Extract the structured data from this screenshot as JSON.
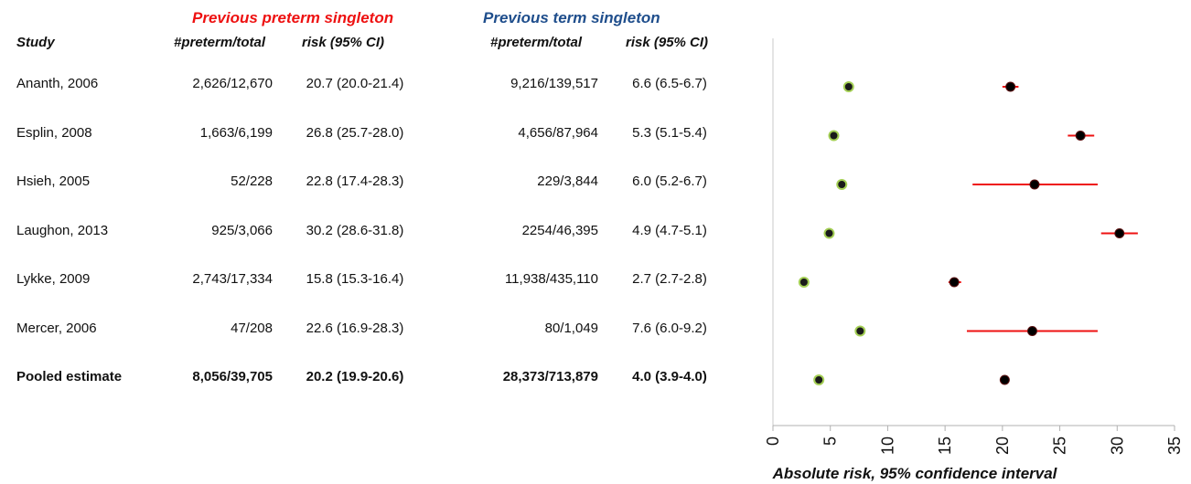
{
  "groups": {
    "preterm": {
      "label": "Previous preterm singleton",
      "color": "#ee1111"
    },
    "term": {
      "label": "Previous term singleton",
      "color": "#1f4e8c"
    }
  },
  "headers": {
    "study": "Study",
    "preterm_count": "#preterm/total",
    "preterm_risk": "risk (95% CI)",
    "term_count": "#preterm/total",
    "term_risk": "risk (95% CI)"
  },
  "rows": [
    {
      "study": "Ananth, 2006",
      "pre_n": "2,626/12,670",
      "pre_risk": "20.7 (20.0-21.4)",
      "term_n": "9,216/139,517",
      "term_risk": "6.6 (6.5-6.7)"
    },
    {
      "study": "Esplin, 2008",
      "pre_n": "1,663/6,199",
      "pre_risk": "26.8 (25.7-28.0)",
      "term_n": "4,656/87,964",
      "term_risk": "5.3 (5.1-5.4)"
    },
    {
      "study": "Hsieh, 2005",
      "pre_n": "52/228",
      "pre_risk": "22.8 (17.4-28.3)",
      "term_n": "229/3,844",
      "term_risk": "6.0 (5.2-6.7)"
    },
    {
      "study": "Laughon, 2013",
      "pre_n": "925/3,066",
      "pre_risk": "30.2 (28.6-31.8)",
      "term_n": "2254/46,395",
      "term_risk": "4.9 (4.7-5.1)"
    },
    {
      "study": "Lykke, 2009",
      "pre_n": "2,743/17,334",
      "pre_risk": "15.8 (15.3-16.4)",
      "term_n": "11,938/435,110",
      "term_risk": "2.7 (2.7-2.8)"
    },
    {
      "study": "Mercer, 2006",
      "pre_n": "47/208",
      "pre_risk": "22.6 (16.9-28.3)",
      "term_n": "80/1,049",
      "term_risk": "7.6 (6.0-9.2)"
    },
    {
      "study": "Pooled estimate",
      "pre_n": "8,056/39,705",
      "pre_risk": "20.2 (19.9-20.6)",
      "term_n": "28,373/713,879",
      "term_risk": "4.0 (3.9-4.0)",
      "pooled": true
    }
  ],
  "chart_data": {
    "type": "scatter",
    "xlabel": "Absolute risk, 95% confidence interval",
    "xlim": [
      0,
      35
    ],
    "xticks": [
      0,
      5,
      10,
      15,
      20,
      25,
      30,
      35
    ],
    "grid": false,
    "categories": [
      "Ananth, 2006",
      "Esplin, 2008",
      "Hsieh, 2005",
      "Laughon, 2013",
      "Lykke, 2009",
      "Mercer, 2006",
      "Pooled estimate"
    ],
    "series": [
      {
        "name": "Previous preterm singleton",
        "marker_color": "#000000",
        "ci_color": "#ee1111",
        "values": [
          20.7,
          26.8,
          22.8,
          30.2,
          15.8,
          22.6,
          20.2
        ],
        "ci_low": [
          20.0,
          25.7,
          17.4,
          28.6,
          15.3,
          16.9,
          19.9
        ],
        "ci_high": [
          21.4,
          28.0,
          28.3,
          31.8,
          16.4,
          28.3,
          20.6
        ]
      },
      {
        "name": "Previous term singleton",
        "marker_color": "#2f7a36",
        "marker_edge": "#a4cf55",
        "values": [
          6.6,
          5.3,
          6.0,
          4.9,
          2.7,
          7.6,
          4.0
        ],
        "ci_low": [
          6.5,
          5.1,
          5.2,
          4.7,
          2.7,
          6.0,
          3.9
        ],
        "ci_high": [
          6.7,
          5.4,
          6.7,
          5.1,
          2.8,
          9.2,
          4.0
        ]
      }
    ]
  }
}
